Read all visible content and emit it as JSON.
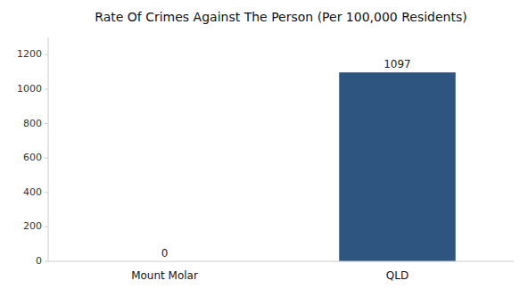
{
  "chart_data": {
    "type": "bar",
    "title": "Rate Of Crimes Against The Person (Per 100,000 Residents)",
    "categories": [
      "Mount Molar",
      "QLD"
    ],
    "values": [
      0,
      1097
    ],
    "color": "#2e5480",
    "ylim": [
      0,
      1300
    ],
    "yticks": [
      0,
      200,
      400,
      600,
      800,
      1000,
      1200
    ],
    "grid": false,
    "data_labels": true
  }
}
